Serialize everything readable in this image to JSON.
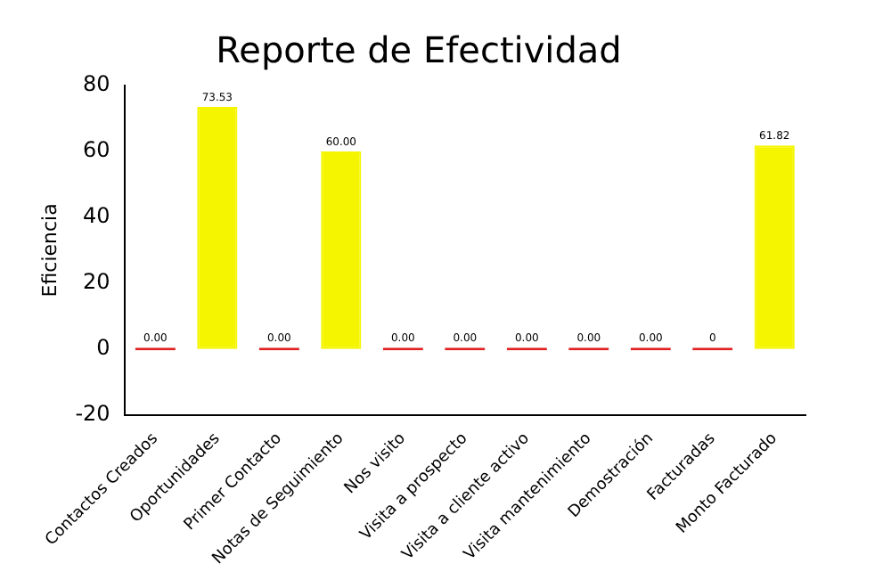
{
  "chart_data": {
    "type": "bar",
    "title": "Reporte de Efectividad",
    "ylabel": "Eficiencia",
    "categories": [
      "Contactos Creados",
      "Oportunidades",
      "Primer Contacto",
      "Notas de Seguimiento",
      "Nos visito",
      "Visita a prospecto",
      "Visita a cliente activo",
      "Visita mantenimiento",
      "Demostración",
      "Facturadas",
      "Monto Facturado"
    ],
    "values": [
      0,
      73.53,
      0,
      60,
      0,
      0,
      0,
      0,
      0,
      0,
      61.82
    ],
    "value_labels": [
      "0.00",
      "73.53",
      "0.00",
      "60.00",
      "0.00",
      "0.00",
      "0.00",
      "0.00",
      "0.00",
      "0",
      "61.82"
    ],
    "colors": [
      "#e02020",
      "#f5f500",
      "#e02020",
      "#f5f500",
      "#e02020",
      "#e02020",
      "#e02020",
      "#e02020",
      "#e02020",
      "#e02020",
      "#f5f500"
    ],
    "ylim": [
      -20,
      80
    ],
    "yticks": [
      -20,
      0,
      20,
      40,
      60,
      80
    ],
    "grid": false,
    "legend": false
  }
}
